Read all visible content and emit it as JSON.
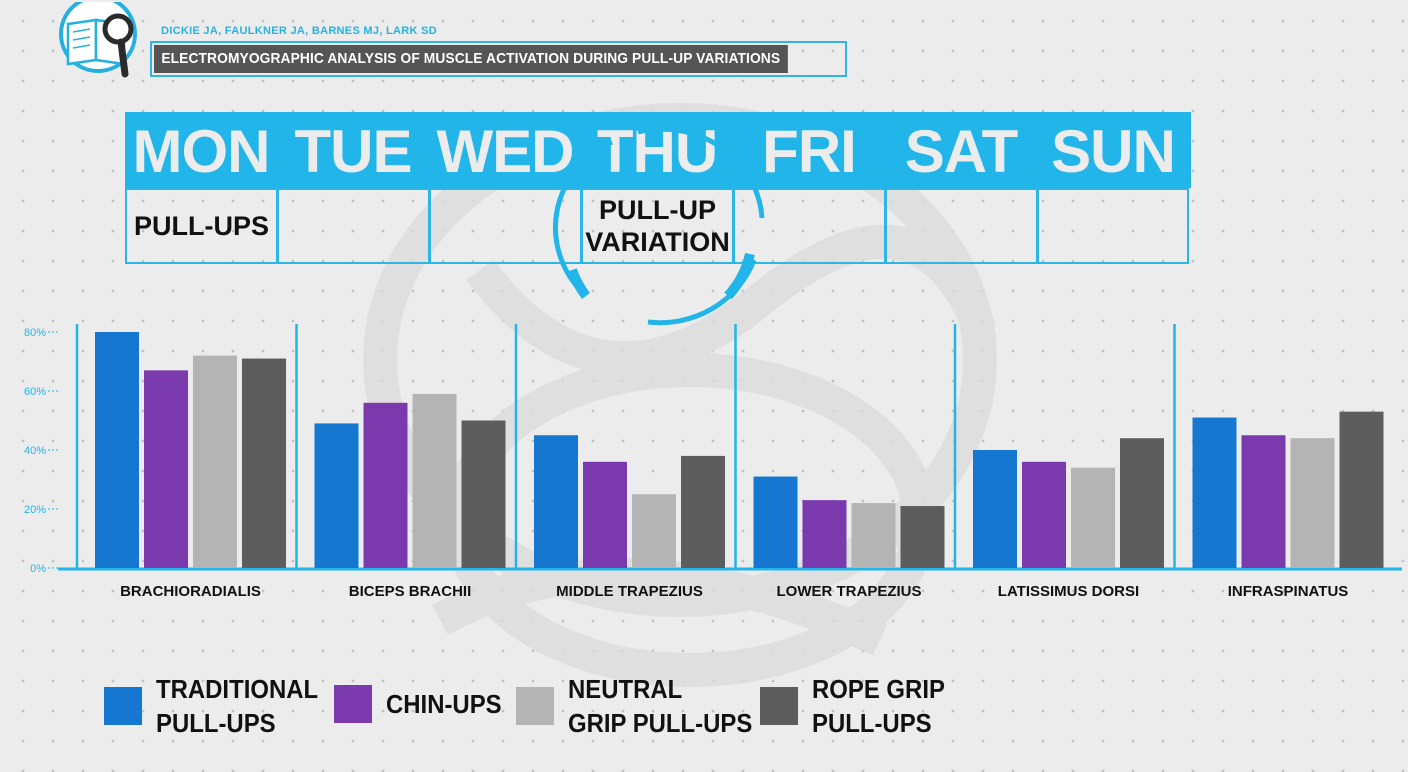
{
  "header": {
    "authors": "DICKIE JA, FAULKNER JA, BARNES MJ, LARK SD",
    "study_title": "ELECTROMYOGRAPHIC ANALYSIS OF MUSCLE ACTIVATION DURING PULL-UP VARIATIONS",
    "icon": "book-magnifier-icon"
  },
  "schedule": {
    "days": [
      "MON",
      "TUE",
      "WED",
      "THU",
      "FRI",
      "SAT",
      "SUN"
    ],
    "entries": [
      [
        "PULL-UPS"
      ],
      [],
      [],
      [
        "PULL-UP",
        "VARIATION"
      ],
      [],
      [],
      []
    ],
    "highlighted_day": "THU"
  },
  "colors": {
    "accent": "#22b5ea",
    "traditional": "#1577cf",
    "chin": "#7a3aae",
    "neutral": "#b4b4b4",
    "rope": "#5d5d5d"
  },
  "chart_data": {
    "type": "bar",
    "categories": [
      "BRACHIORADIALIS",
      "BICEPS BRACHII",
      "MIDDLE TRAPEZIUS",
      "LOWER TRAPEZIUS",
      "LATISSIMUS DORSI",
      "INFRASPINATUS"
    ],
    "series": [
      {
        "name": "TRADITIONAL PULL-UPS",
        "color": "#1577cf",
        "values": [
          80,
          49,
          45,
          31,
          40,
          51
        ]
      },
      {
        "name": "CHIN-UPS",
        "color": "#7a3aae",
        "values": [
          67,
          56,
          36,
          23,
          36,
          45
        ]
      },
      {
        "name": "NEUTRAL GRIP PULL-UPS",
        "color": "#b4b4b4",
        "values": [
          72,
          59,
          25,
          22,
          34,
          44
        ]
      },
      {
        "name": "ROPE GRIP PULL-UPS",
        "color": "#5d5d5d",
        "values": [
          71,
          50,
          38,
          21,
          44,
          53
        ]
      }
    ],
    "yticks": [
      "0%",
      "20%",
      "40%",
      "60%",
      "80%"
    ],
    "ylim": [
      0,
      80
    ],
    "grid": false,
    "legend": "bottom-left"
  },
  "legend": [
    {
      "lines": [
        "TRADITIONAL",
        "PULL-UPS"
      ],
      "color": "#1577cf"
    },
    {
      "lines": [
        "CHIN-UPS"
      ],
      "color": "#7a3aae"
    },
    {
      "lines": [
        "NEUTRAL",
        "GRIP PULL-UPS"
      ],
      "color": "#b4b4b4"
    },
    {
      "lines": [
        "ROPE GRIP",
        "PULL-UPS"
      ],
      "color": "#5d5d5d"
    }
  ]
}
